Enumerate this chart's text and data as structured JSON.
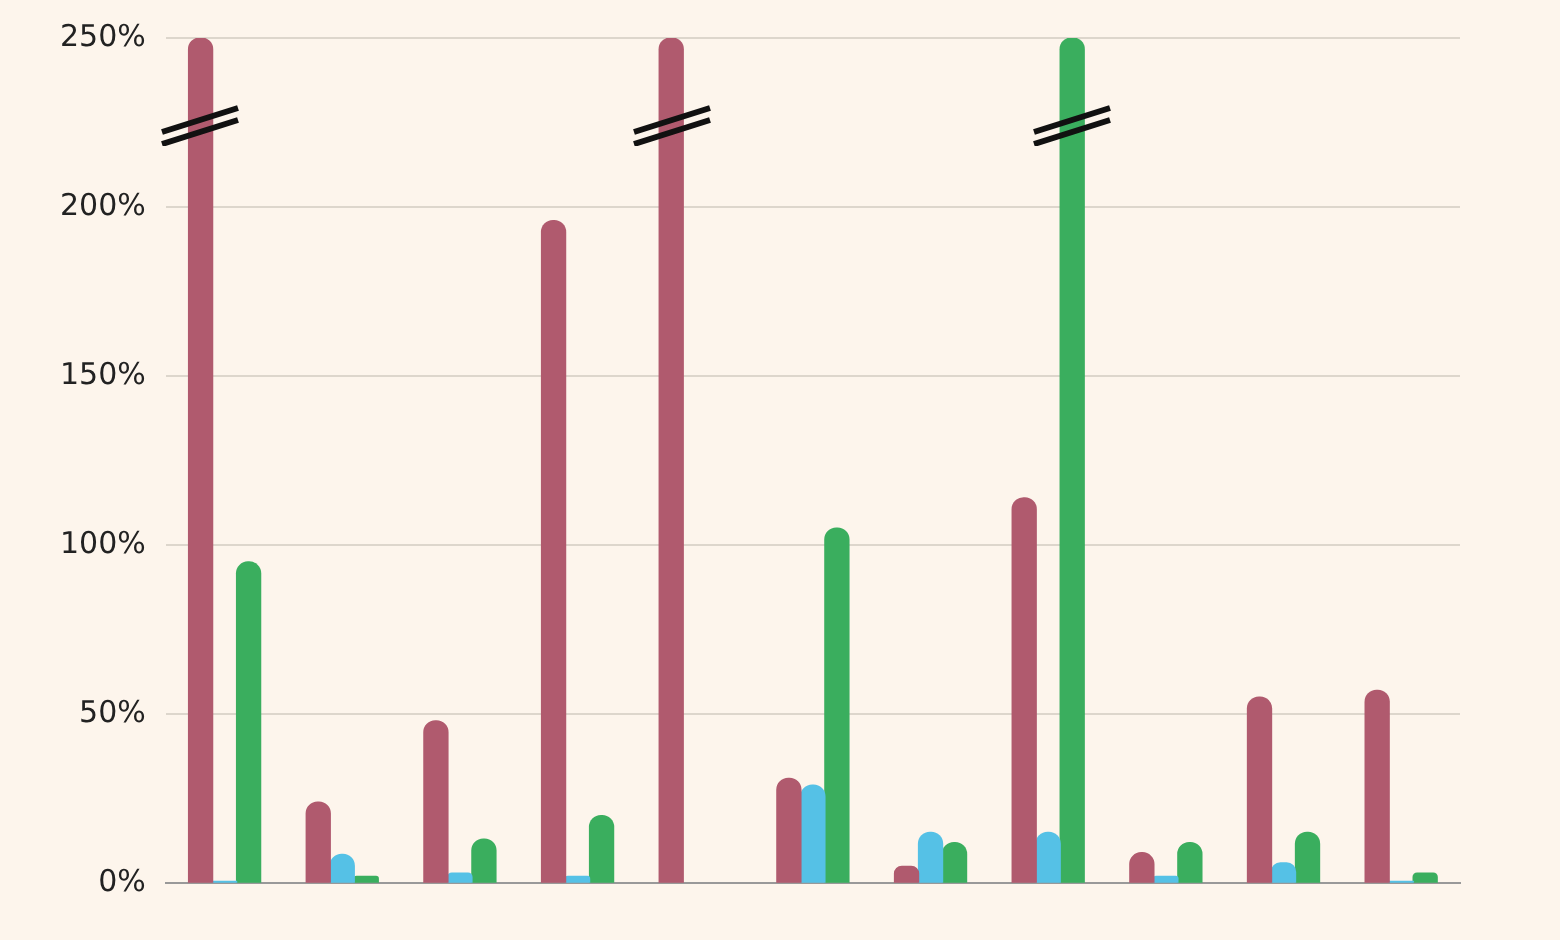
{
  "chart_data": {
    "type": "bar",
    "categories": [
      null,
      null,
      null,
      null,
      null,
      null,
      null,
      null,
      null,
      null,
      null
    ],
    "series": [
      {
        "color": "#b05a6e",
        "values": [
          250,
          24,
          48,
          196,
          250,
          31,
          5,
          114,
          9,
          55,
          57
        ]
      },
      {
        "color": "#55c1e6",
        "values": [
          0.5,
          8.5,
          3,
          2,
          null,
          29,
          15,
          15,
          2,
          6,
          0.5
        ]
      },
      {
        "color": "#3aae5e",
        "values": [
          95,
          2,
          13,
          20,
          null,
          105,
          12,
          250,
          12,
          15,
          3
        ]
      }
    ],
    "ylim": [
      0,
      250
    ],
    "yticks": [
      {
        "value": 0,
        "label": "0%"
      },
      {
        "value": 50,
        "label": "50%"
      },
      {
        "value": 100,
        "label": "100%"
      },
      {
        "value": 150,
        "label": "150%"
      },
      {
        "value": 200,
        "label": "200%"
      },
      {
        "value": 250,
        "label": "250%"
      }
    ],
    "grid": "y"
  }
}
